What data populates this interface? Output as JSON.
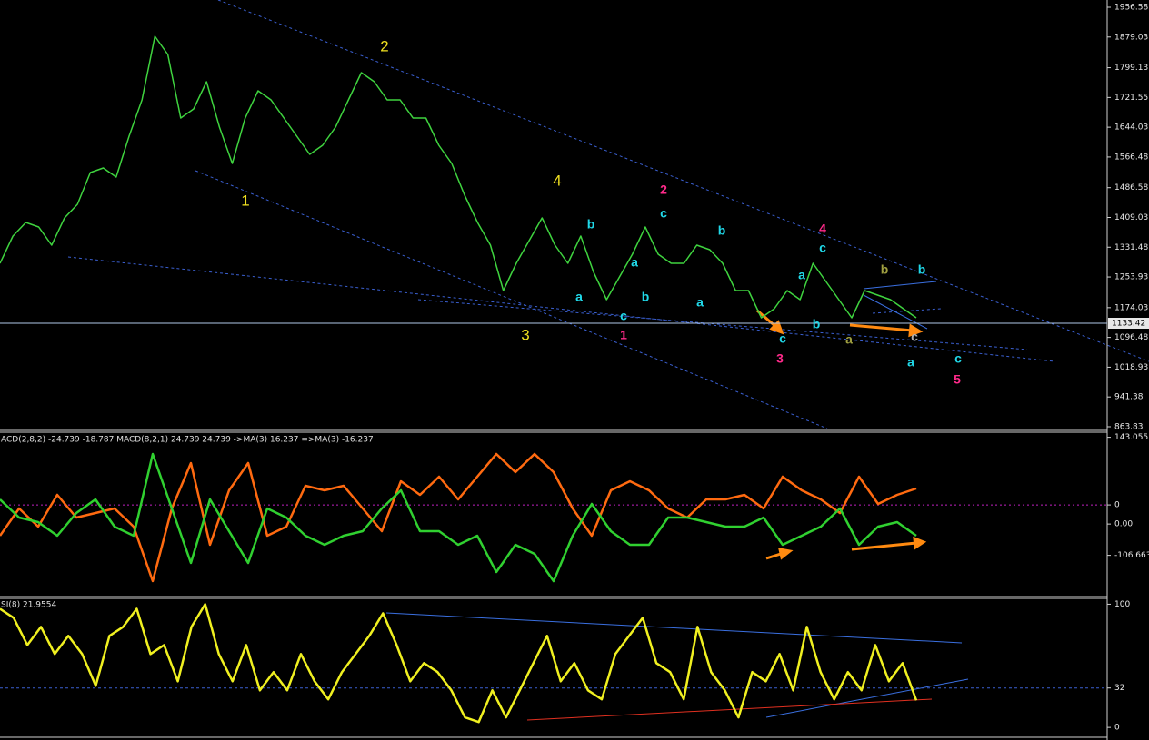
{
  "chart_data": [
    {
      "type": "line",
      "color": "#3fd33f",
      "values": [
        1289.6,
        1360.5,
        1396.0,
        1384.2,
        1336.9,
        1407.9,
        1443.3,
        1526.1,
        1537.9,
        1514.3,
        1620.7,
        1715.3,
        1880.9,
        1833.6,
        1668.0,
        1691.7,
        1762.6,
        1644.4,
        1549.8,
        1668.0,
        1739.0,
        1715.3,
        1668.0,
        1620.7,
        1573.4,
        1597.1,
        1644.4,
        1715.3,
        1786.3,
        1762.6,
        1715.3,
        1715.3,
        1668.0,
        1668.0,
        1597.1,
        1549.8,
        1467.0,
        1396.0,
        1336.9,
        1218.6,
        1289.6,
        1348.7,
        1407.9,
        1336.9,
        1289.6,
        1360.5,
        1265.9,
        1195.0,
        1254.1,
        1313.2,
        1384.2,
        1313.2,
        1289.6,
        1289.6,
        1336.9,
        1325.1,
        1289.6,
        1218.6,
        1218.6,
        1147.7,
        1171.3,
        1218.6,
        1195.0,
        1289.6,
        1242.3,
        1195.0,
        1147.7,
        1218.6,
        1206.8,
        1195.0,
        1171.3,
        1147.7
      ],
      "ylim": [
        856.7,
        1975.5
      ],
      "yticks": [
        1956.58,
        1879.03,
        1799.13,
        1721.55,
        1644.03,
        1566.48,
        1486.58,
        1409.03,
        1331.48,
        1253.93,
        1174.03,
        1096.48,
        1018.93,
        941.38,
        863.83
      ],
      "current_price": 1133.42,
      "annotations": [
        {
          "text": "1",
          "color": "#f0e020"
        },
        {
          "text": "2",
          "color": "#f0e020"
        },
        {
          "text": "3",
          "color": "#f0e020"
        },
        {
          "text": "4",
          "color": "#f0e020"
        },
        {
          "text": "b",
          "color": "#20d8e8"
        },
        {
          "text": "a",
          "color": "#20d8e8"
        },
        {
          "text": "a",
          "color": "#20d8e8"
        },
        {
          "text": "b",
          "color": "#20d8e8"
        },
        {
          "text": "c",
          "color": "#20d8e8"
        },
        {
          "text": "1",
          "color": "#ff2a8a"
        },
        {
          "text": "2",
          "color": "#ff2a8a"
        },
        {
          "text": "c",
          "color": "#20d8e8"
        },
        {
          "text": "b",
          "color": "#20d8e8"
        },
        {
          "text": "a",
          "color": "#20d8e8"
        },
        {
          "text": "a",
          "color": "#20d8e8"
        },
        {
          "text": "b",
          "color": "#20d8e8"
        },
        {
          "text": "c",
          "color": "#20d8e8"
        },
        {
          "text": "3",
          "color": "#ff2a8a"
        },
        {
          "text": "4",
          "color": "#ff2a8a"
        },
        {
          "text": "c",
          "color": "#20d8e8"
        },
        {
          "text": "b",
          "color": "#a0a040"
        },
        {
          "text": "b",
          "color": "#20d8e8"
        },
        {
          "text": "a",
          "color": "#a0a040"
        },
        {
          "text": "c",
          "color": "#b0b0b0"
        },
        {
          "text": "a",
          "color": "#20d8e8"
        },
        {
          "text": "c",
          "color": "#20d8e8"
        },
        {
          "text": "5",
          "color": "#ff2a8a"
        }
      ]
    },
    {
      "type": "line",
      "title": "ACD(2,8,2) -24.739 -18.787  MACD(8,2,1) 24.739 24.739  ->MA(3) 16.237  =>MA(3) -16.237",
      "series": [
        {
          "color": "#ff6a10",
          "values": [
            -65.2,
            -7.5,
            -45.9,
            21.3,
            -26.7,
            -17.1,
            -7.5,
            -45.9,
            -161.2,
            -7.5,
            88.5,
            -84.4,
            30.9,
            88.5,
            -65.2,
            -45.9,
            40.5,
            30.9,
            40.5,
            -7.5,
            -55.6,
            50.1,
            21.3,
            59.7,
            11.7,
            59.7,
            107.7,
            69.3,
            107.7,
            69.3,
            -7.5,
            -65.2,
            30.9,
            50.1,
            30.9,
            -7.5,
            -26.7,
            11.7,
            11.7,
            21.3,
            -7.5,
            59.7,
            30.9,
            11.7,
            -17.1,
            59.7,
            2.1,
            21.3,
            34.7
          ]
        },
        {
          "color": "#30d030",
          "axis": "y2",
          "values": [
            38.3,
            10.1,
            3.0,
            -18.2,
            17.1,
            38.3,
            -4.1,
            -18.2,
            108.9,
            24.2,
            -60.6,
            38.3,
            -11.1,
            -60.6,
            24.2,
            10.1,
            -18.2,
            -32.3,
            -18.2,
            -11.1,
            24.2,
            52.4,
            -11.1,
            -11.1,
            -32.3,
            -18.2,
            -74.7,
            -32.3,
            -46.4,
            -88.8,
            -18.2,
            31.2,
            -11.1,
            -32.3,
            -32.3,
            10.1,
            10.1,
            3.0,
            -4.1,
            -4.1,
            10.1,
            -32.3,
            -18.2,
            -4.1,
            24.2,
            -32.3,
            -4.1,
            3.0,
            -18.2
          ]
        }
      ],
      "ylim": [
        -190,
        150
      ],
      "yticks": [
        143.055,
        0,
        -106.663
      ],
      "y2lim": [
        -110,
        140
      ],
      "y2ticks": [
        {
          "value": 0,
          "label": "0.00"
        }
      ]
    },
    {
      "type": "line",
      "title": "SI(8) 21.9554",
      "color": "#f0f020",
      "values": [
        96.3,
        89.0,
        66.9,
        81.6,
        59.6,
        74.3,
        59.6,
        33.8,
        74.3,
        81.6,
        96.3,
        59.6,
        66.9,
        37.5,
        81.6,
        100,
        59.6,
        37.5,
        66.9,
        30.1,
        44.9,
        30.1,
        59.6,
        37.5,
        22.8,
        44.9,
        59.6,
        74.3,
        92.6,
        66.9,
        37.5,
        52.2,
        44.9,
        30.1,
        8.1,
        4.4,
        30.1,
        8.1,
        30.1,
        52.2,
        74.3,
        37.5,
        52.2,
        30.1,
        22.8,
        59.6,
        74.3,
        89.0,
        52.2,
        44.9,
        22.8,
        81.6,
        44.9,
        30.1,
        8.1,
        44.9,
        37.5,
        59.6,
        30.1,
        81.6,
        44.9,
        22.8,
        44.9,
        30.1,
        66.9,
        37.5,
        52.2,
        21.96
      ],
      "ylim": [
        -8,
        104
      ],
      "yticks": [
        100,
        32,
        0
      ]
    }
  ]
}
